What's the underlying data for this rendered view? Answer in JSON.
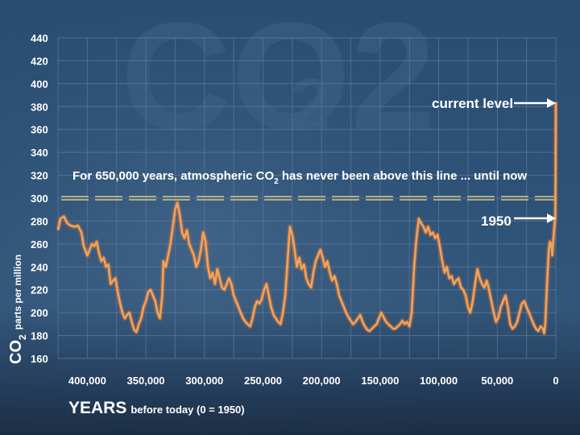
{
  "chart_data": {
    "type": "line",
    "title": "CO2",
    "title_sub": "2",
    "ylabel_main": "CO",
    "ylabel_sub": "2",
    "ylabel_rest": "parts per million",
    "xlabel_bold": "YEARS",
    "xlabel_rest": "before today (0 = 1950)",
    "ylim": [
      160,
      440
    ],
    "xlim": [
      425000,
      0
    ],
    "yticks": [
      "160",
      "180",
      "200",
      "220",
      "240",
      "260",
      "280",
      "300",
      "320",
      "340",
      "360",
      "380",
      "400",
      "420",
      "440"
    ],
    "xticks": [
      {
        "value": 400000,
        "label": "400,000"
      },
      {
        "value": 350000,
        "label": "350,000"
      },
      {
        "value": 300000,
        "label": "300,000"
      },
      {
        "value": 250000,
        "label": "250,000"
      },
      {
        "value": 200000,
        "label": "200,000"
      },
      {
        "value": 150000,
        "label": "150,000"
      },
      {
        "value": 100000,
        "label": "100,000"
      },
      {
        "value": 50000,
        "label": "50,000"
      },
      {
        "value": 0,
        "label": "0"
      }
    ],
    "threshold": {
      "value": 300,
      "label_a": "For 650,000 years, atmospheric CO",
      "label_sub": "2",
      "label_b": " has never been above this line ... until now"
    },
    "annotations": [
      {
        "text": "current level",
        "x": 0,
        "y": 384
      },
      {
        "text": "1950",
        "x": 0,
        "y": 281
      }
    ],
    "colors": {
      "line": "#f2a25c",
      "line_glow": "#ff7a1f",
      "threshold": "#d8c88a",
      "grid": "#5b7a9e",
      "background": "#2d5176"
    },
    "grid": true,
    "series": [
      {
        "points": [
          [
            425000,
            272
          ],
          [
            423000,
            282
          ],
          [
            420000,
            284
          ],
          [
            417000,
            278
          ],
          [
            414000,
            276
          ],
          [
            411000,
            275
          ],
          [
            408000,
            276
          ],
          [
            405000,
            270
          ],
          [
            403000,
            258
          ],
          [
            400000,
            250
          ],
          [
            398000,
            255
          ],
          [
            396000,
            260
          ],
          [
            394000,
            258
          ],
          [
            392000,
            262
          ],
          [
            390000,
            252
          ],
          [
            388000,
            245
          ],
          [
            386000,
            248
          ],
          [
            384000,
            240
          ],
          [
            382000,
            242
          ],
          [
            380000,
            225
          ],
          [
            378000,
            228
          ],
          [
            376000,
            230
          ],
          [
            374000,
            218
          ],
          [
            372000,
            208
          ],
          [
            370000,
            200
          ],
          [
            368000,
            195
          ],
          [
            366000,
            198
          ],
          [
            364000,
            200
          ],
          [
            362000,
            192
          ],
          [
            360000,
            185
          ],
          [
            358000,
            183
          ],
          [
            356000,
            190
          ],
          [
            354000,
            195
          ],
          [
            352000,
            205
          ],
          [
            350000,
            210
          ],
          [
            348000,
            218
          ],
          [
            346000,
            220
          ],
          [
            344000,
            215
          ],
          [
            342000,
            210
          ],
          [
            340000,
            200
          ],
          [
            338000,
            195
          ],
          [
            336000,
            215
          ],
          [
            335000,
            245
          ],
          [
            333000,
            240
          ],
          [
            331000,
            250
          ],
          [
            329000,
            260
          ],
          [
            327000,
            275
          ],
          [
            325000,
            290
          ],
          [
            323000,
            296
          ],
          [
            321000,
            285
          ],
          [
            319000,
            270
          ],
          [
            317000,
            265
          ],
          [
            315000,
            272
          ],
          [
            313000,
            260
          ],
          [
            311000,
            255
          ],
          [
            309000,
            250
          ],
          [
            307000,
            240
          ],
          [
            305000,
            245
          ],
          [
            303000,
            255
          ],
          [
            301000,
            270
          ],
          [
            299000,
            262
          ],
          [
            297000,
            240
          ],
          [
            295000,
            230
          ],
          [
            293000,
            235
          ],
          [
            291000,
            225
          ],
          [
            289000,
            238
          ],
          [
            287000,
            230
          ],
          [
            285000,
            222
          ],
          [
            283000,
            220
          ],
          [
            281000,
            225
          ],
          [
            279000,
            230
          ],
          [
            277000,
            225
          ],
          [
            275000,
            215
          ],
          [
            273000,
            210
          ],
          [
            271000,
            205
          ],
          [
            269000,
            200
          ],
          [
            267000,
            195
          ],
          [
            265000,
            192
          ],
          [
            263000,
            190
          ],
          [
            261000,
            188
          ],
          [
            259000,
            195
          ],
          [
            257000,
            205
          ],
          [
            255000,
            210
          ],
          [
            253000,
            208
          ],
          [
            251000,
            212
          ],
          [
            249000,
            220
          ],
          [
            247000,
            225
          ],
          [
            245000,
            215
          ],
          [
            243000,
            205
          ],
          [
            241000,
            198
          ],
          [
            239000,
            195
          ],
          [
            237000,
            192
          ],
          [
            235000,
            190
          ],
          [
            233000,
            200
          ],
          [
            231000,
            215
          ],
          [
            229000,
            245
          ],
          [
            227000,
            275
          ],
          [
            225000,
            268
          ],
          [
            223000,
            255
          ],
          [
            221000,
            240
          ],
          [
            219000,
            248
          ],
          [
            217000,
            238
          ],
          [
            215000,
            242
          ],
          [
            213000,
            230
          ],
          [
            211000,
            225
          ],
          [
            209000,
            222
          ],
          [
            207000,
            235
          ],
          [
            205000,
            245
          ],
          [
            203000,
            250
          ],
          [
            201000,
            255
          ],
          [
            199000,
            248
          ],
          [
            197000,
            240
          ],
          [
            195000,
            245
          ],
          [
            193000,
            235
          ],
          [
            191000,
            228
          ],
          [
            189000,
            232
          ],
          [
            187000,
            225
          ],
          [
            185000,
            215
          ],
          [
            183000,
            210
          ],
          [
            181000,
            205
          ],
          [
            179000,
            200
          ],
          [
            177000,
            196
          ],
          [
            175000,
            193
          ],
          [
            173000,
            190
          ],
          [
            171000,
            192
          ],
          [
            169000,
            195
          ],
          [
            167000,
            198
          ],
          [
            165000,
            192
          ],
          [
            163000,
            188
          ],
          [
            161000,
            185
          ],
          [
            159000,
            184
          ],
          [
            157000,
            186
          ],
          [
            155000,
            188
          ],
          [
            153000,
            190
          ],
          [
            151000,
            195
          ],
          [
            149000,
            200
          ],
          [
            147000,
            196
          ],
          [
            145000,
            192
          ],
          [
            143000,
            190
          ],
          [
            141000,
            188
          ],
          [
            139000,
            186
          ],
          [
            137000,
            186
          ],
          [
            135000,
            188
          ],
          [
            133000,
            190
          ],
          [
            131000,
            193
          ],
          [
            129000,
            190
          ],
          [
            127000,
            192
          ],
          [
            125000,
            188
          ],
          [
            123000,
            200
          ],
          [
            121000,
            240
          ],
          [
            119000,
            265
          ],
          [
            117000,
            282
          ],
          [
            115000,
            278
          ],
          [
            113000,
            275
          ],
          [
            111000,
            270
          ],
          [
            109000,
            275
          ],
          [
            107000,
            268
          ],
          [
            105000,
            270
          ],
          [
            103000,
            265
          ],
          [
            101000,
            268
          ],
          [
            99000,
            258
          ],
          [
            97000,
            245
          ],
          [
            95000,
            235
          ],
          [
            93000,
            240
          ],
          [
            91000,
            230
          ],
          [
            89000,
            232
          ],
          [
            87000,
            225
          ],
          [
            85000,
            228
          ],
          [
            83000,
            230
          ],
          [
            81000,
            222
          ],
          [
            79000,
            220
          ],
          [
            77000,
            215
          ],
          [
            75000,
            205
          ],
          [
            73000,
            200
          ],
          [
            71000,
            210
          ],
          [
            69000,
            225
          ],
          [
            67000,
            238
          ],
          [
            65000,
            230
          ],
          [
            63000,
            225
          ],
          [
            61000,
            222
          ],
          [
            59000,
            228
          ],
          [
            57000,
            220
          ],
          [
            55000,
            210
          ],
          [
            53000,
            200
          ],
          [
            51000,
            192
          ],
          [
            49000,
            196
          ],
          [
            47000,
            205
          ],
          [
            45000,
            210
          ],
          [
            43000,
            215
          ],
          [
            41000,
            205
          ],
          [
            39000,
            190
          ],
          [
            37000,
            186
          ],
          [
            35000,
            188
          ],
          [
            33000,
            192
          ],
          [
            31000,
            200
          ],
          [
            29000,
            208
          ],
          [
            27000,
            210
          ],
          [
            25000,
            205
          ],
          [
            23000,
            200
          ],
          [
            21000,
            195
          ],
          [
            19000,
            190
          ],
          [
            17000,
            186
          ],
          [
            15000,
            184
          ],
          [
            13000,
            188
          ],
          [
            11000,
            186
          ],
          [
            10000,
            182
          ],
          [
            9000,
            190
          ],
          [
            8000,
            215
          ],
          [
            7000,
            235
          ],
          [
            6000,
            255
          ],
          [
            5000,
            262
          ],
          [
            4000,
            260
          ],
          [
            3000,
            250
          ],
          [
            2500,
            260
          ],
          [
            2000,
            265
          ],
          [
            1500,
            272
          ],
          [
            1000,
            278
          ],
          [
            500,
            282
          ],
          [
            300,
            300
          ],
          [
            150,
            330
          ],
          [
            60,
            360
          ],
          [
            0,
            384
          ]
        ]
      }
    ]
  }
}
